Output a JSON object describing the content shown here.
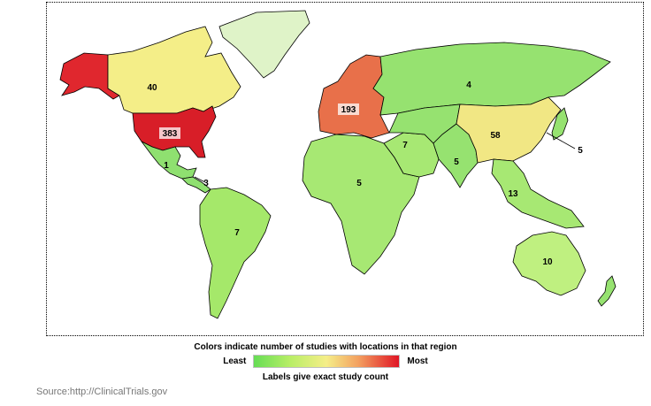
{
  "map": {
    "regions": [
      {
        "name": "Canada",
        "count": "40",
        "color": "#f4ee88"
      },
      {
        "name": "United States",
        "count": "383",
        "color": "#d81e28"
      },
      {
        "name": "Alaska",
        "count": "",
        "color": "#e0272e"
      },
      {
        "name": "Greenland",
        "count": "",
        "color": "#dff3c8"
      },
      {
        "name": "Mexico",
        "count": "1",
        "color": "#8fe070"
      },
      {
        "name": "Central America",
        "count": "3",
        "color": "#8fe070"
      },
      {
        "name": "South America",
        "count": "7",
        "color": "#a5e86a"
      },
      {
        "name": "Europe",
        "count": "193",
        "color": "#e8704a"
      },
      {
        "name": "Africa",
        "count": "5",
        "color": "#a7e873"
      },
      {
        "name": "Middle East",
        "count": "7",
        "color": "#a7e873"
      },
      {
        "name": "Russia",
        "count": "4",
        "color": "#96e270"
      },
      {
        "name": "Central Asia",
        "count": "",
        "color": "#96e270"
      },
      {
        "name": "South Asia",
        "count": "5",
        "color": "#96e270"
      },
      {
        "name": "China",
        "count": "58",
        "color": "#f1e784"
      },
      {
        "name": "Japan",
        "count": "5",
        "color": "#96e270"
      },
      {
        "name": "Southeast Asia",
        "count": "13",
        "color": "#a7e873"
      },
      {
        "name": "Australia",
        "count": "10",
        "color": "#bff080"
      },
      {
        "name": "New Zealand",
        "count": "",
        "color": "#96e270"
      }
    ]
  },
  "legend": {
    "title": "Colors indicate number of studies with locations in that region",
    "least_label": "Least",
    "most_label": "Most",
    "subtitle": "Labels give exact study count"
  },
  "source": "Source:http://ClinicalTrials.gov"
}
